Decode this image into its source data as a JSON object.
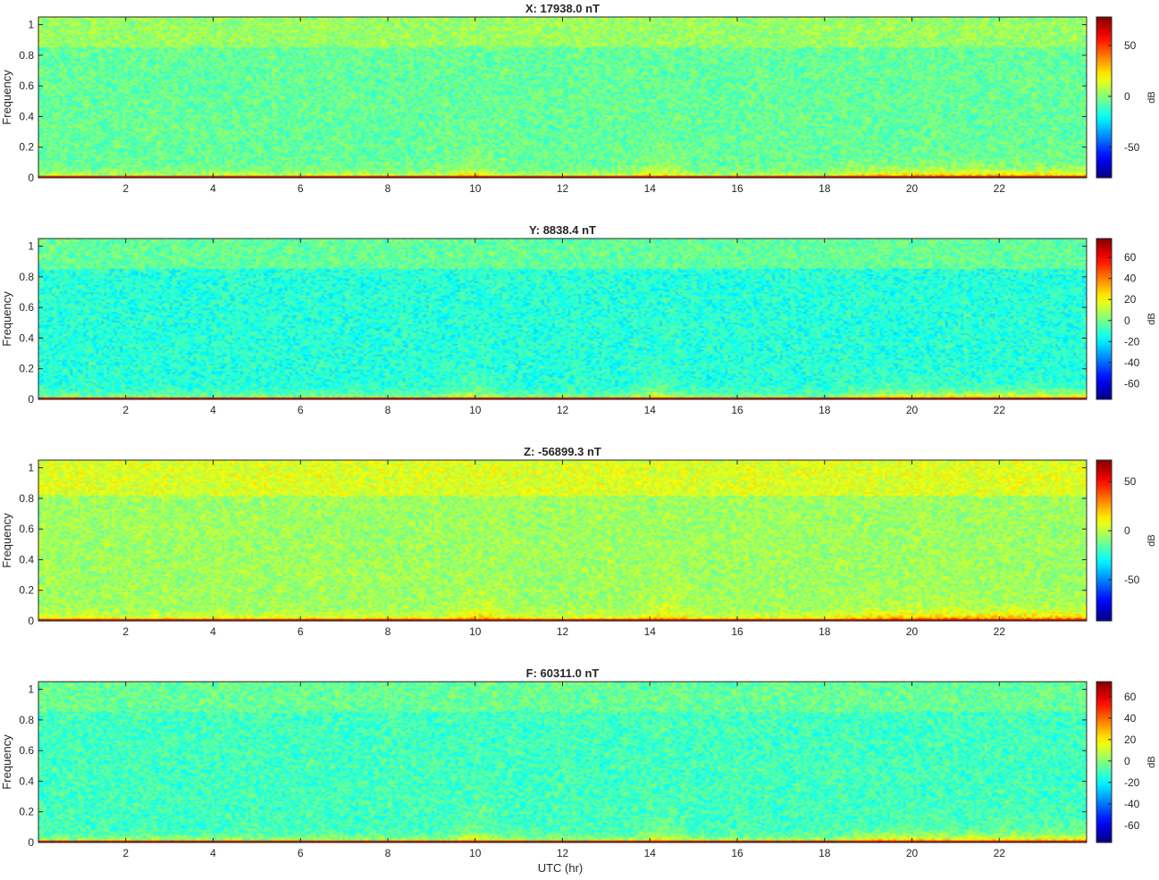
{
  "figure": {
    "xlabel": "UTC (hr)"
  },
  "chart_data": [
    {
      "type": "heatmap",
      "title": "X: 17938.0 nT",
      "ylabel": "Frequency",
      "xlabel": "",
      "xlim": [
        0,
        24
      ],
      "ylim": [
        0,
        1.05
      ],
      "xticks": [
        2,
        4,
        6,
        8,
        10,
        12,
        14,
        16,
        18,
        20,
        22
      ],
      "yticks": [
        0,
        0.2,
        0.4,
        0.6,
        0.8,
        1
      ],
      "colorbar": {
        "label": "dB",
        "range": [
          -80,
          78
        ],
        "ticks": [
          -50,
          0,
          50
        ]
      },
      "colormap": "jet",
      "features": {
        "base_level_db": -5,
        "dc_band_db": 70,
        "high_freq_band": {
          "from": 0.85,
          "to": 1.05,
          "db": 5
        },
        "broadband_events_hr": [
          9.9,
          14.2
        ],
        "evening_low_freq_enhancement_hr": [
          18,
          24
        ]
      }
    },
    {
      "type": "heatmap",
      "title": "Y: 8838.4 nT",
      "ylabel": "Frequency",
      "xlabel": "",
      "xlim": [
        0,
        24
      ],
      "ylim": [
        0,
        1.05
      ],
      "xticks": [
        2,
        4,
        6,
        8,
        10,
        12,
        14,
        16,
        18,
        20,
        22
      ],
      "yticks": [
        0,
        0.2,
        0.4,
        0.6,
        0.8,
        1
      ],
      "colorbar": {
        "label": "dB",
        "range": [
          -75,
          78
        ],
        "ticks": [
          -60,
          -40,
          -20,
          0,
          20,
          40,
          60
        ]
      },
      "colormap": "jet",
      "features": {
        "base_level_db": -12,
        "dc_band_db": 70,
        "high_freq_band": {
          "from": 0.85,
          "to": 1.05,
          "db": 0
        },
        "broadband_events_hr": [
          9.9,
          14.2
        ],
        "evening_low_freq_enhancement_hr": [
          18,
          24
        ]
      }
    },
    {
      "type": "heatmap",
      "title": "Z: -56899.3 nT",
      "ylabel": "Frequency",
      "xlabel": "",
      "xlim": [
        0,
        24
      ],
      "ylim": [
        0,
        1.05
      ],
      "xticks": [
        2,
        4,
        6,
        8,
        10,
        12,
        14,
        16,
        18,
        20,
        22
      ],
      "yticks": [
        0,
        0.2,
        0.4,
        0.6,
        0.8,
        1
      ],
      "colorbar": {
        "label": "dB",
        "range": [
          -92,
          72
        ],
        "ticks": [
          -50,
          0,
          50
        ]
      },
      "colormap": "jet",
      "features": {
        "base_level_db": -5,
        "dc_band_db": 62,
        "high_freq_band": {
          "from": 0.82,
          "to": 1.05,
          "db": 8
        },
        "broadband_events_hr": [
          10.1,
          14.4
        ],
        "evening_low_freq_enhancement_hr": [
          18,
          24
        ]
      }
    },
    {
      "type": "heatmap",
      "title": "F: 60311.0 nT",
      "ylabel": "Frequency",
      "xlabel": "UTC (hr)",
      "xlim": [
        0,
        24
      ],
      "ylim": [
        0,
        1.05
      ],
      "xticks": [
        2,
        4,
        6,
        8,
        10,
        12,
        14,
        16,
        18,
        20,
        22
      ],
      "yticks": [
        0,
        0.2,
        0.4,
        0.6,
        0.8,
        1
      ],
      "colorbar": {
        "label": "dB",
        "range": [
          -76,
          74
        ],
        "ticks": [
          -60,
          -40,
          -20,
          0,
          20,
          40,
          60
        ]
      },
      "colormap": "jet",
      "features": {
        "base_level_db": -10,
        "dc_band_db": 66,
        "high_freq_band": {
          "from": 0.85,
          "to": 1.05,
          "db": -3
        },
        "broadband_events_hr": [
          10.0,
          14.3
        ],
        "evening_low_freq_enhancement_hr": [
          18,
          24
        ]
      }
    }
  ]
}
